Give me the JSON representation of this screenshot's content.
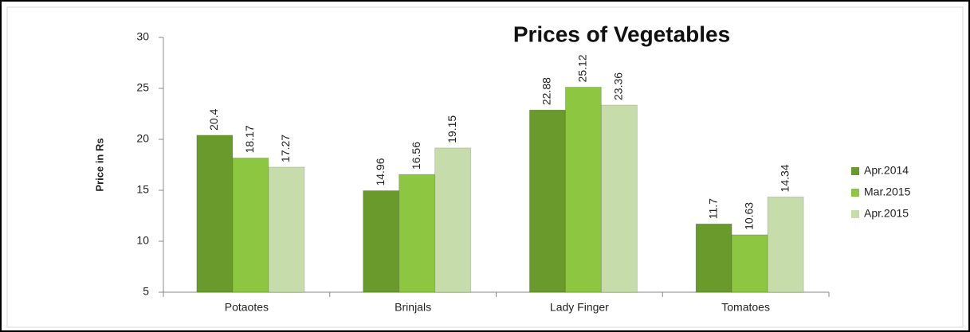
{
  "chart_data": {
    "type": "bar",
    "title": "Prices of Vegetables",
    "y_label": "Price in Rs",
    "categories": [
      "Potaotes",
      "Brinjals",
      "Lady Finger",
      "Tomatoes"
    ],
    "series": [
      {
        "name": "Apr.2014",
        "color": "#6b9a2c",
        "values": [
          20.4,
          14.96,
          22.88,
          11.7
        ]
      },
      {
        "name": "Mar.2015",
        "color": "#8dc641",
        "values": [
          18.17,
          16.56,
          25.12,
          10.63
        ]
      },
      {
        "name": "Apr.2015",
        "color": "#c6dcaa",
        "values": [
          17.27,
          19.15,
          23.36,
          14.34
        ]
      }
    ],
    "ylim": [
      5,
      30
    ],
    "yticks": [
      5,
      10,
      15,
      20,
      25,
      30
    ],
    "legend": "right"
  }
}
